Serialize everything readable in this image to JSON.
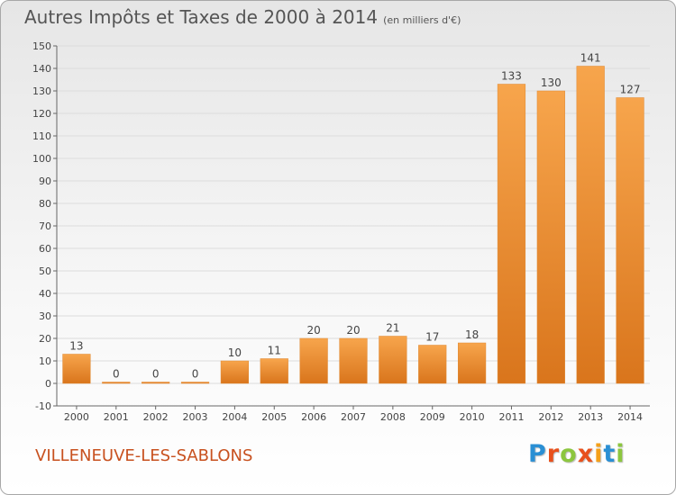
{
  "header": {
    "title": "Autres Impôts et Taxes de 2000 à 2014",
    "unit": "(en milliers d'€)"
  },
  "footer": {
    "commune": "VILLENEUVE-LES-SABLONS",
    "brand_letters": [
      "P",
      "r",
      "o",
      "x",
      "i",
      "t",
      "i"
    ],
    "brand_colors": [
      "#2a8fd4",
      "#e8501c",
      "#8cc63f",
      "#e8501c",
      "#f4a01a",
      "#2a8fd4",
      "#8cc63f"
    ]
  },
  "colors": {
    "bar_light": "#f7a54c",
    "bar_dark": "#d9751c",
    "grid": "#dcdcdc",
    "axis": "#666666",
    "text": "#444444"
  },
  "chart_data": {
    "type": "bar",
    "title": "Autres Impôts et Taxes de 2000 à 2014",
    "subtitle": "(en milliers d'€)",
    "categories": [
      "2000",
      "2001",
      "2002",
      "2003",
      "2004",
      "2005",
      "2006",
      "2007",
      "2008",
      "2009",
      "2010",
      "2011",
      "2012",
      "2013",
      "2014"
    ],
    "values": [
      13,
      0,
      0,
      0,
      10,
      11,
      20,
      20,
      21,
      17,
      18,
      133,
      130,
      141,
      127
    ],
    "ylim": [
      -10,
      150
    ],
    "yticks": [
      -10,
      0,
      10,
      20,
      30,
      40,
      50,
      60,
      70,
      80,
      90,
      100,
      110,
      120,
      130,
      140,
      150
    ],
    "grid": true,
    "legend": "none"
  }
}
